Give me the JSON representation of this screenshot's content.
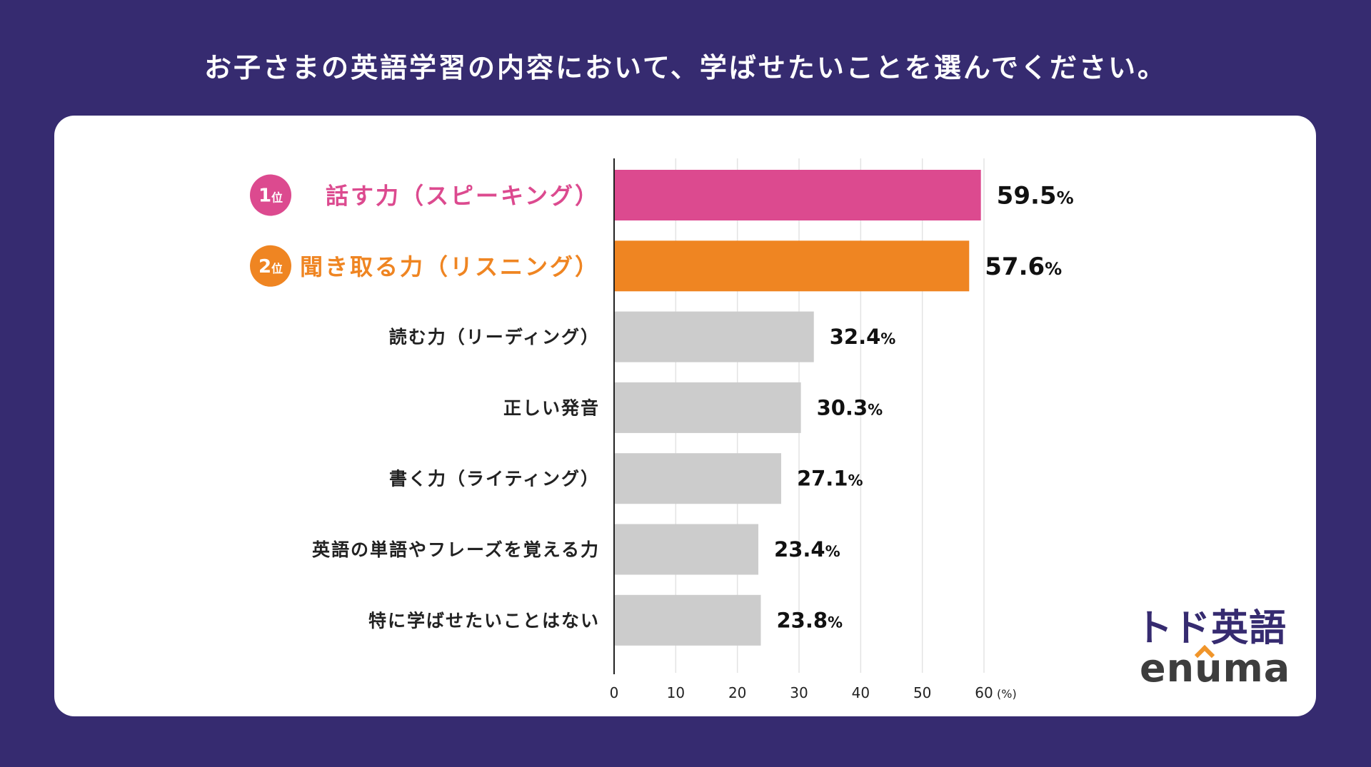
{
  "title": "お子さまの英語学習の内容において、学ばせたいことを選んでください。",
  "chart_data": {
    "type": "bar",
    "orientation": "horizontal",
    "categories": [
      "話す力（スピーキング）",
      "聞き取る力（リスニング）",
      "読む力（リーディング）",
      "正しい発音",
      "書く力（ライティング）",
      "英語の単語やフレーズを覚える力",
      "特に学ばせたいことはない"
    ],
    "values": [
      59.5,
      57.6,
      32.4,
      30.3,
      27.1,
      23.4,
      23.8
    ],
    "value_labels": [
      "59.5",
      "57.6",
      "32.4",
      "30.3",
      "27.1",
      "23.4",
      "23.8"
    ],
    "value_suffix": "%",
    "ranks": [
      "1",
      "2",
      null,
      null,
      null,
      null,
      null
    ],
    "rank_suffix": "位",
    "bar_colors": [
      "#dc4a8f",
      "#ef8522",
      "#cccccc",
      "#cccccc",
      "#cccccc",
      "#cccccc",
      "#cccccc"
    ],
    "label_colors": [
      "#dc4a8f",
      "#ef8522",
      "#222222",
      "#222222",
      "#222222",
      "#222222",
      "#222222"
    ],
    "xlim": [
      0,
      60
    ],
    "xticks": [
      "0",
      "10",
      "20",
      "30",
      "40",
      "50",
      "60"
    ],
    "xunit": "(%)",
    "grid": true
  },
  "logo": {
    "jp": "トド英語",
    "en": "enuma"
  }
}
